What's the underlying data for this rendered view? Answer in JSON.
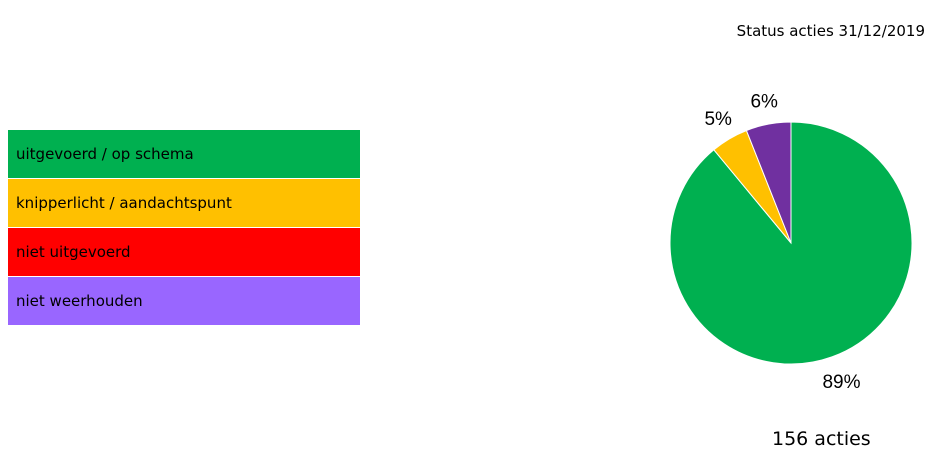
{
  "page": {
    "status_title": "Status acties 31/12/2019",
    "total_label": "156 acties"
  },
  "legend": {
    "items": [
      {
        "key": "green",
        "label": "uitgevoerd / op schema",
        "color": "#00b050"
      },
      {
        "key": "orange",
        "label": "knipperlicht / aandachtspunt",
        "color": "#ffc000"
      },
      {
        "key": "red",
        "label": "niet uitgevoerd",
        "color": "#ff0000"
      },
      {
        "key": "purple",
        "label": "niet weerhouden",
        "color": "#9966ff"
      }
    ]
  },
  "chart_data": {
    "type": "pie",
    "title": "Status acties 31/12/2019",
    "slices": [
      {
        "label": "89%",
        "value": 89,
        "color": "#00b050"
      },
      {
        "label": "5%",
        "value": 5,
        "color": "#ffc000"
      },
      {
        "label": "6%",
        "value": 6,
        "color": "#7030a0"
      }
    ],
    "total": "156 acties"
  }
}
